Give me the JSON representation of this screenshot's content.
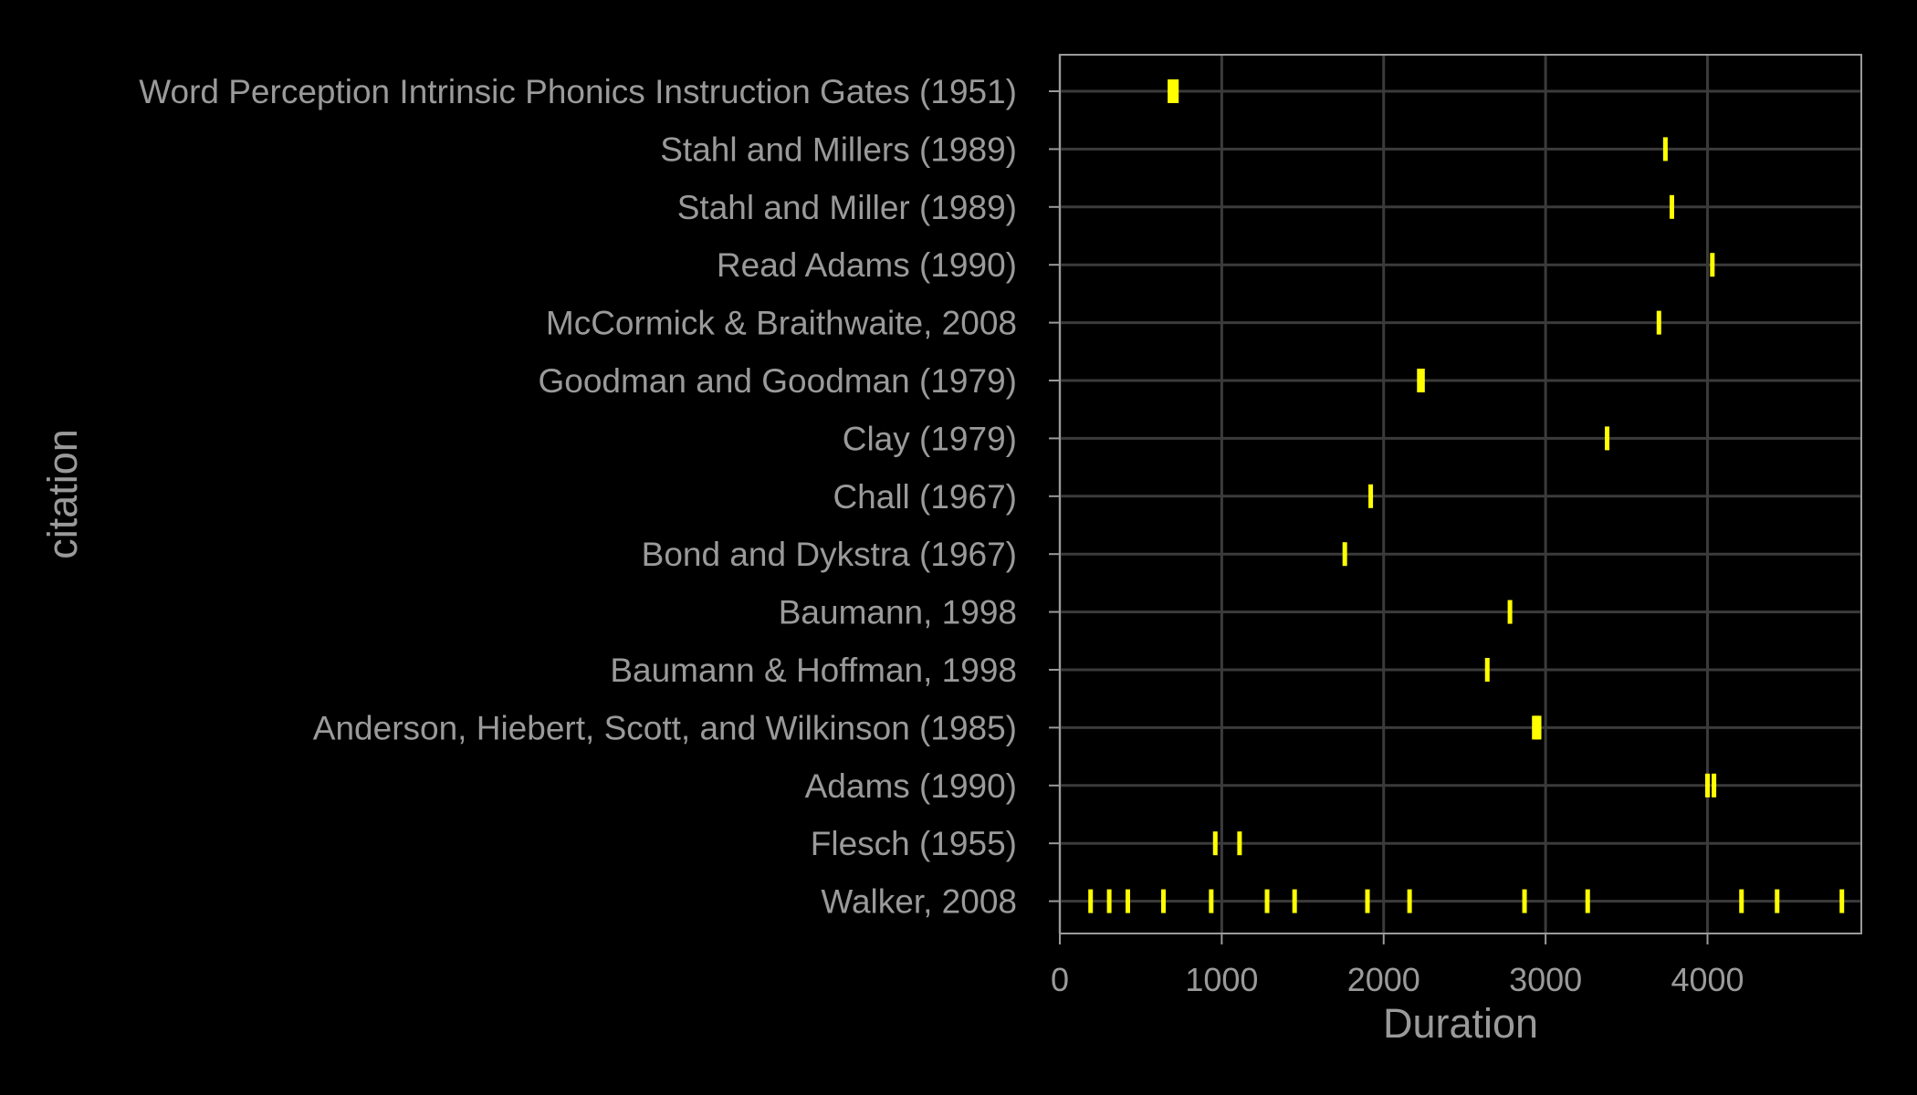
{
  "chart_data": {
    "type": "scatter",
    "marker": "vertical-tick",
    "xlabel": "Duration",
    "ylabel": "citation",
    "xlim": [
      0,
      4950
    ],
    "xticks": [
      0,
      1000,
      2000,
      3000,
      4000
    ],
    "grid": true,
    "colors": {
      "background": "#000000",
      "panel_border": "#9a9a9a",
      "grid": "#3b3b3b",
      "marks": "#ffff00",
      "text": "#9a9a9a"
    },
    "categories": [
      "Word Perception Intrinsic Phonics Instruction Gates (1951)",
      "Stahl and Millers (1989)",
      "Stahl and Miller (1989)",
      "Read Adams (1990)",
      "McCormick & Braithwaite, 2008",
      "Goodman and Goodman (1979)",
      "Clay (1979)",
      "Chall (1967)",
      "Bond and Dykstra (1967)",
      "Baumann, 1998",
      "Baumann & Hoffman, 1998",
      "Anderson, Hiebert, Scott, and Wilkinson (1985)",
      "Adams (1990)",
      "Flesch (1955)",
      "Walker, 2008"
    ],
    "points": [
      {
        "citation": "Word Perception Intrinsic Phonics Instruction Gates (1951)",
        "durations": [
          680,
          690,
          700,
          710,
          720
        ]
      },
      {
        "citation": "Stahl and Millers (1989)",
        "durations": [
          3740
        ]
      },
      {
        "citation": "Stahl and Miller (1989)",
        "durations": [
          3780
        ]
      },
      {
        "citation": "Read Adams (1990)",
        "durations": [
          4030
        ]
      },
      {
        "citation": "McCormick & Braithwaite, 2008",
        "durations": [
          3700
        ]
      },
      {
        "citation": "Goodman and Goodman (1979)",
        "durations": [
          2220,
          2240
        ]
      },
      {
        "citation": "Clay (1979)",
        "durations": [
          3380
        ]
      },
      {
        "citation": "Chall (1967)",
        "durations": [
          1920
        ]
      },
      {
        "citation": "Bond and Dykstra (1967)",
        "durations": [
          1760
        ]
      },
      {
        "citation": "Baumann, 1998",
        "durations": [
          2780
        ]
      },
      {
        "citation": "Baumann & Hoffman, 1998",
        "durations": [
          2640
        ]
      },
      {
        "citation": "Anderson, Hiebert, Scott, and Wilkinson (1985)",
        "durations": [
          2930,
          2945,
          2960
        ]
      },
      {
        "citation": "Adams (1990)",
        "durations": [
          4000,
          4040
        ]
      },
      {
        "citation": "Flesch (1955)",
        "durations": [
          960,
          1110
        ]
      },
      {
        "citation": "Walker, 2008",
        "durations": [
          190,
          305,
          420,
          640,
          935,
          1280,
          1450,
          1900,
          2160,
          2870,
          3260,
          4210,
          4430,
          4830
        ]
      }
    ]
  }
}
